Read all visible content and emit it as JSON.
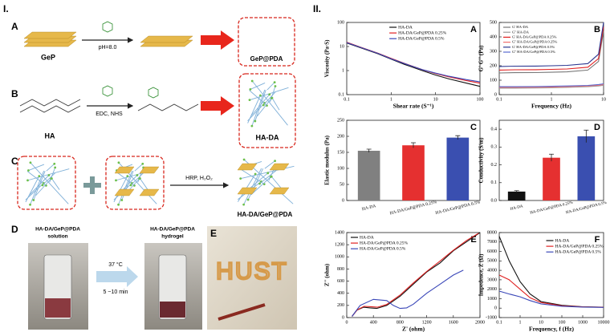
{
  "schematic": {
    "label": "I.",
    "a": {
      "label": "A",
      "material": "GeP",
      "condition": "pH=8.0",
      "product": "GeP@PDA"
    },
    "b": {
      "label": "B",
      "material": "HA",
      "condition": "EDC, NHS",
      "product": "HA-DA"
    },
    "c": {
      "label": "C",
      "condition": "HRP, H₂O₂",
      "product": "HA-DA/GeP@PDA"
    },
    "d": {
      "label": "D",
      "before": [
        "HA-DA/GeP@PDA",
        "solution"
      ],
      "after": [
        "HA-DA/GeP@PDA",
        "hydrogel"
      ],
      "temperature": "37 °C",
      "time": "5 ~10 min"
    },
    "e": {
      "label": "E",
      "writing": "HUST"
    }
  },
  "part_two_label": "II.",
  "chart_data": [
    {
      "type": "line",
      "panel": "A",
      "xlabel": "Shear rate (S⁻¹)",
      "ylabel": "Viscosity (Pa·S)",
      "xscale": "log",
      "yscale": "log",
      "xlim": [
        0.1,
        100
      ],
      "ylim": [
        0.1,
        100
      ],
      "xticks": [
        0.1,
        1,
        10,
        100
      ],
      "yticks": [
        0.1,
        1,
        10,
        100
      ],
      "legend": "upper center",
      "x": [
        0.1,
        0.2,
        0.5,
        1,
        2,
        5,
        10,
        20,
        50,
        100
      ],
      "series": [
        {
          "name": "HA-DA",
          "color": "#111111",
          "values": [
            14,
            9,
            5,
            3,
            1.8,
            1,
            0.65,
            0.45,
            0.3,
            0.22
          ]
        },
        {
          "name": "HA-DA/GeP@PDA 0.25%",
          "color": "#e02020",
          "values": [
            15,
            9.5,
            5.3,
            3.2,
            2,
            1.1,
            0.75,
            0.55,
            0.38,
            0.3
          ]
        },
        {
          "name": "HA-DA/GeP@PDA 0.5%",
          "color": "#3a47b8",
          "values": [
            14.5,
            9.3,
            5.2,
            3.1,
            1.95,
            1.1,
            0.78,
            0.58,
            0.42,
            0.34
          ]
        }
      ]
    },
    {
      "type": "line",
      "panel": "B",
      "xlabel": "Frequency (Hz)",
      "ylabel": "G' G'' (Pa)",
      "xscale": "log",
      "xlim": [
        0.1,
        10
      ],
      "ylim": [
        0,
        500
      ],
      "xticks": [
        0.1,
        1,
        10
      ],
      "yticks": [
        0,
        100,
        200,
        300,
        400,
        500
      ],
      "legend": "upper left",
      "x": [
        0.1,
        0.2,
        0.5,
        1,
        2,
        5,
        8,
        10
      ],
      "series": [
        {
          "name": "G' HA-DA",
          "color": "#777777",
          "values": [
            150,
            152,
            153,
            155,
            158,
            170,
            230,
            440
          ]
        },
        {
          "name": "G'' HA-DA",
          "color": "#999999",
          "values": [
            45,
            45,
            46,
            48,
            50,
            55,
            60,
            65
          ]
        },
        {
          "name": "G' HA-DA/GeP@PDA 0.25%",
          "color": "#e02020",
          "values": [
            170,
            172,
            173,
            175,
            178,
            190,
            250,
            470
          ]
        },
        {
          "name": "G'' HA-DA/GeP@PDA 0.25%",
          "color": "#f07070",
          "values": [
            50,
            50,
            51,
            52,
            55,
            60,
            65,
            70
          ]
        },
        {
          "name": "G' HA-DA/GeP@PDA 0.5%",
          "color": "#2a3590",
          "values": [
            195,
            197,
            198,
            200,
            203,
            215,
            280,
            500
          ]
        },
        {
          "name": "G'' HA-DA/GeP@PDA 0.5%",
          "color": "#5a6ad0",
          "values": [
            55,
            55,
            56,
            58,
            60,
            64,
            70,
            75
          ]
        }
      ]
    },
    {
      "type": "bar",
      "panel": "C",
      "ylabel": "Elastic modulus (Pa)",
      "ylim": [
        0,
        250
      ],
      "yticks": [
        0,
        50,
        100,
        150,
        200,
        250
      ],
      "categories": [
        "HA-DA",
        "HA-DA/GeP@PDA 0.25%",
        "HA-DA/GeP@PDA 0.5%"
      ],
      "values": [
        155,
        172,
        196
      ],
      "errors": [
        5,
        8,
        6
      ],
      "colors": [
        "#808080",
        "#e53030",
        "#3a4fb0"
      ]
    },
    {
      "type": "bar",
      "panel": "D",
      "ylabel": "Conductivity (S/m)",
      "ylim": [
        0,
        0.45
      ],
      "yticks": [
        {
          "value": 0,
          "label": "0.0"
        },
        {
          "value": 0.1,
          "label": "0.1"
        },
        {
          "value": 0.2,
          "label": "0.2"
        },
        {
          "value": 0.3,
          "label": "0.3"
        },
        {
          "value": 0.4,
          "label": "0.4"
        }
      ],
      "categories": [
        "HA-DA",
        "HA-DA/GeP@PDA 0.25%",
        "HA-DA/GeP@PDA 0.5%"
      ],
      "values": [
        0.05,
        0.24,
        0.36
      ],
      "errors": [
        0.005,
        0.02,
        0.035
      ],
      "colors": [
        "#111111",
        "#e53030",
        "#3a4fb0"
      ]
    },
    {
      "type": "line",
      "panel": "E",
      "xlabel": "Z' (ohm)",
      "ylabel": "Z'' (ohm)",
      "xlim": [
        0,
        2000
      ],
      "ylim": [
        0,
        1400
      ],
      "xticks": [
        0,
        400,
        800,
        1200,
        1600,
        2000
      ],
      "yticks": [
        0,
        200,
        400,
        600,
        800,
        1000,
        1200,
        1400
      ],
      "legend": "upper left",
      "series": [
        {
          "name": "HA-DA",
          "color": "#111111",
          "x": [
            80,
            150,
            250,
            350,
            450,
            600,
            800,
            1000,
            1200,
            1400,
            1600,
            1800,
            2000
          ],
          "values": [
            20,
            120,
            170,
            160,
            150,
            200,
            350,
            550,
            750,
            900,
            1100,
            1250,
            1400
          ]
        },
        {
          "name": "HA-DA/GeP@PDA 0.25%",
          "color": "#e02020",
          "x": [
            80,
            160,
            260,
            360,
            460,
            600,
            800,
            1000,
            1200,
            1400,
            1600,
            1800,
            1980
          ],
          "values": [
            20,
            130,
            185,
            180,
            170,
            215,
            370,
            570,
            760,
            930,
            1110,
            1270,
            1390
          ]
        },
        {
          "name": "HA-DA/GeP@PDA 0.5%",
          "color": "#3a47b8",
          "x": [
            80,
            200,
            400,
            600,
            700,
            800,
            900,
            1000,
            1200,
            1400,
            1600,
            1750
          ],
          "values": [
            20,
            200,
            300,
            280,
            200,
            150,
            160,
            220,
            400,
            550,
            700,
            780
          ]
        }
      ]
    },
    {
      "type": "line",
      "panel": "F",
      "xlabel": "Frequency, f (Hz)",
      "ylabel": "Impedence, Z (Ω)",
      "xscale": "log",
      "xlim": [
        0.1,
        10000
      ],
      "ylim": [
        -1000,
        8000
      ],
      "xticks": [
        0.1,
        1,
        10,
        100,
        1000,
        10000
      ],
      "yticks": [
        -1000,
        0,
        1000,
        2000,
        3000,
        4000,
        5000,
        6000,
        7000,
        8000
      ],
      "legend": "upper right",
      "x": [
        0.1,
        0.3,
        1,
        3,
        10,
        100,
        1000,
        10000
      ],
      "series": [
        {
          "name": "HA-DA",
          "color": "#111111",
          "values": [
            7600,
            5000,
            2800,
            1500,
            700,
            300,
            150,
            100
          ]
        },
        {
          "name": "HA-DA/GeP@PDA 0.25%",
          "color": "#e02020",
          "values": [
            3500,
            3000,
            2000,
            1100,
            600,
            250,
            130,
            90
          ]
        },
        {
          "name": "HA-DA/GeP@PDA 0.5%",
          "color": "#3a47b8",
          "values": [
            1800,
            1500,
            1200,
            800,
            450,
            200,
            110,
            80
          ]
        }
      ]
    }
  ]
}
